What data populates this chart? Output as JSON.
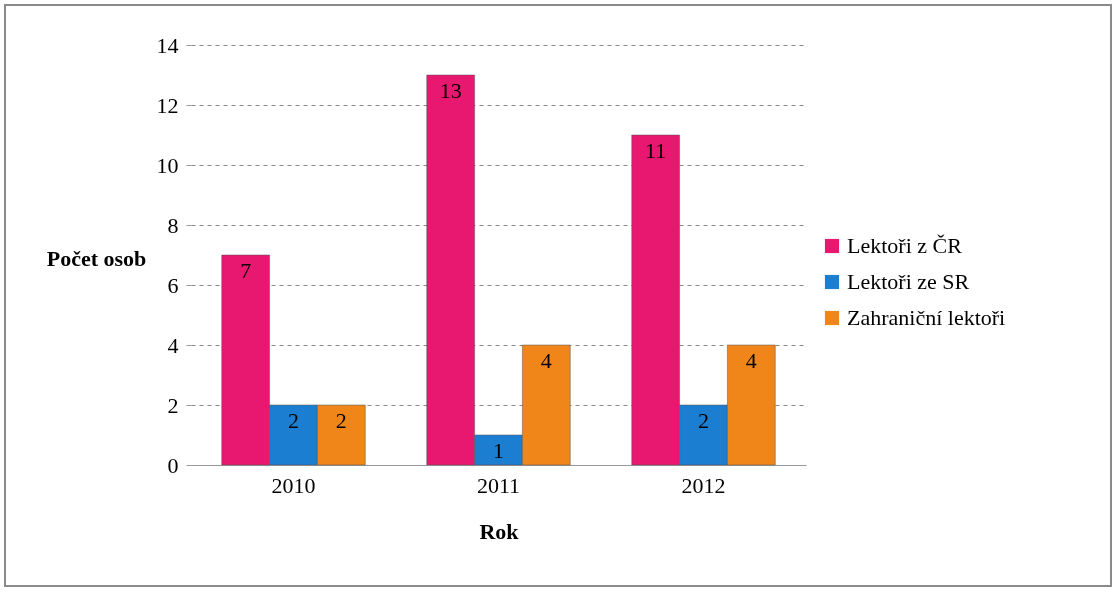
{
  "chart_data": {
    "type": "bar",
    "xlabel": "Rok",
    "ylabel": "Počet osob",
    "categories": [
      "2010",
      "2011",
      "2012"
    ],
    "series": [
      {
        "name": "Lektoři z ČR",
        "color": "#e8176f",
        "values": [
          7,
          13,
          11
        ]
      },
      {
        "name": "Lektoři ze SR",
        "color": "#1b7ed0",
        "values": [
          2,
          1,
          2
        ]
      },
      {
        "name": "Zahraniční lektoři",
        "color": "#f0861a",
        "values": [
          2,
          4,
          4
        ]
      }
    ],
    "ylim": [
      0,
      14
    ],
    "yticks": [
      0,
      2,
      4,
      6,
      8,
      10,
      12,
      14
    ],
    "grid": "y",
    "legend": "right",
    "data_labels": true
  }
}
